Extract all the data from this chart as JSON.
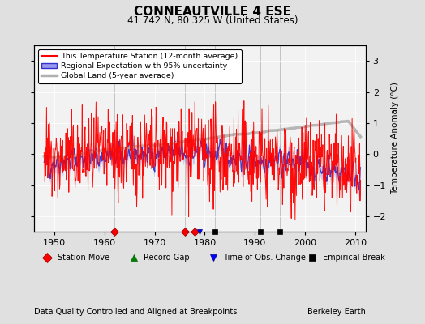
{
  "title": "CONNEAUTVILLE 4 ESE",
  "subtitle": "41.742 N, 80.325 W (United States)",
  "xlabel_bottom": "Data Quality Controlled and Aligned at Breakpoints",
  "xlabel_right": "Berkeley Earth",
  "ylabel": "Temperature Anomaly (°C)",
  "xlim": [
    1946,
    2012
  ],
  "ylim": [
    -2.5,
    3.5
  ],
  "yticks": [
    -2,
    -1,
    0,
    1,
    2,
    3
  ],
  "xticks": [
    1950,
    1960,
    1970,
    1980,
    1990,
    2000,
    2010
  ],
  "bg_color": "#e0e0e0",
  "plot_bg_color": "#f2f2f2",
  "station_move_years": [
    1962,
    1976,
    1978
  ],
  "time_obs_change_years": [
    1979
  ],
  "empirical_break_years": [
    1982,
    1991,
    1995
  ],
  "seed": 42
}
